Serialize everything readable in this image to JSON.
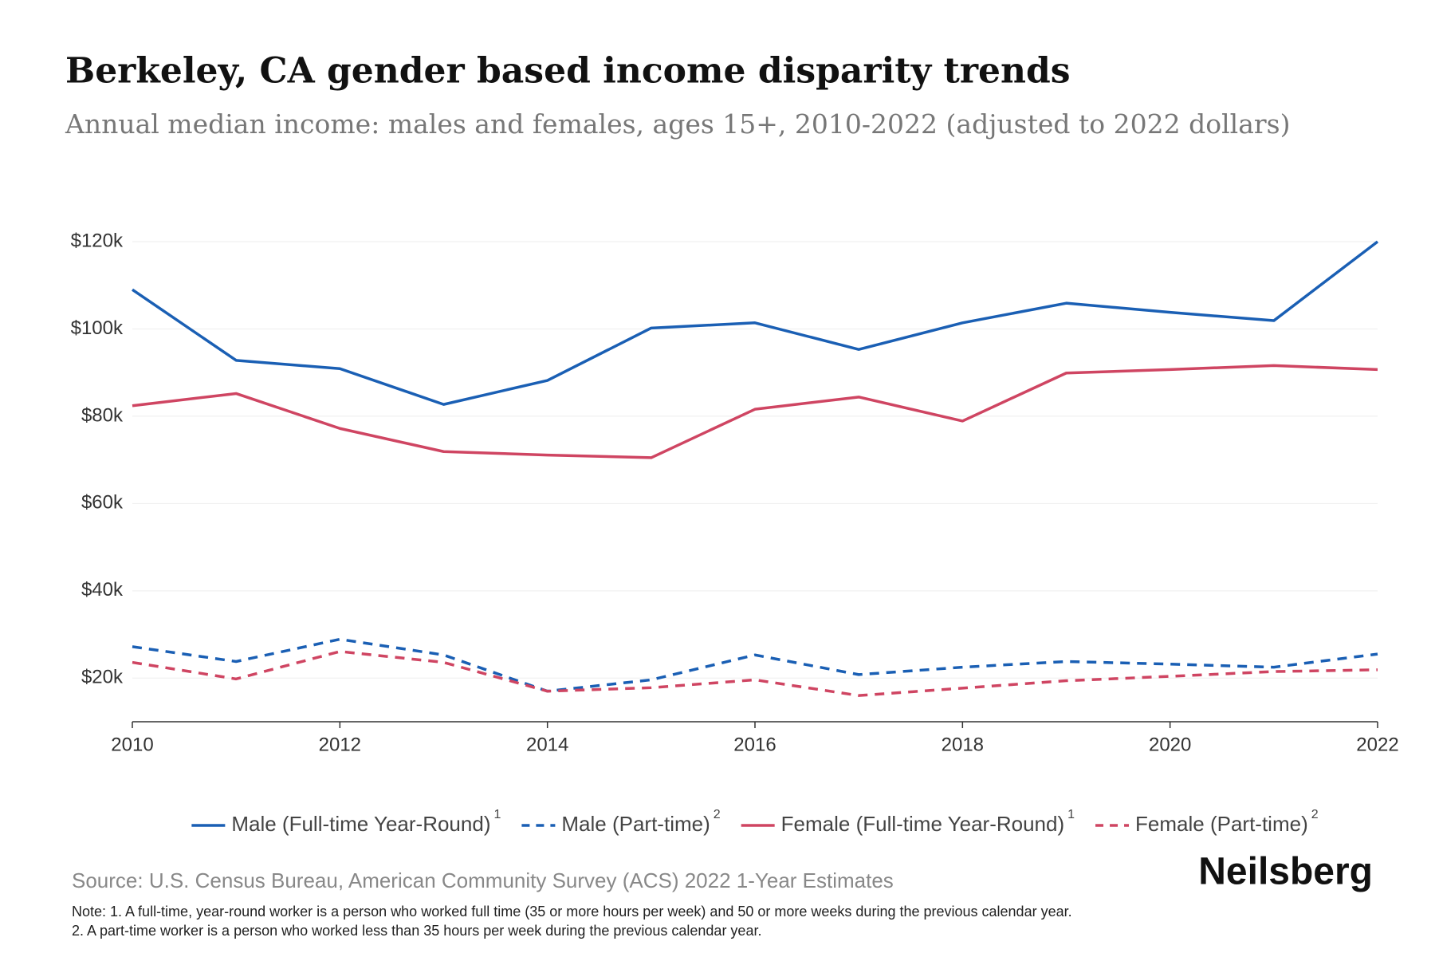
{
  "chart_data": {
    "type": "line",
    "title": "Berkeley, CA gender based income disparity trends",
    "subtitle": "Annual median income: males and females, ages 15+, 2010-2022 (adjusted to 2022 dollars)",
    "x": [
      2010,
      2011,
      2012,
      2013,
      2014,
      2015,
      2016,
      2017,
      2018,
      2019,
      2020,
      2021,
      2022
    ],
    "xlim": [
      2010,
      2022
    ],
    "xticks": [
      2010,
      2012,
      2014,
      2016,
      2018,
      2020,
      2022
    ],
    "ylim": [
      10000,
      120000
    ],
    "yticks": [
      {
        "value": 20000,
        "label": "$20k"
      },
      {
        "value": 40000,
        "label": "$40k"
      },
      {
        "value": 60000,
        "label": "$60k"
      },
      {
        "value": 80000,
        "label": "$80k"
      },
      {
        "value": 100000,
        "label": "$100k"
      },
      {
        "value": 120000,
        "label": "$120k"
      }
    ],
    "grid": true,
    "series": [
      {
        "name": "Male (Full-time Year-Round)",
        "note": "1",
        "color": "#1a5fb4",
        "dashed": false,
        "values": [
          109000,
          92800,
          90900,
          82700,
          88200,
          100200,
          101400,
          95300,
          101400,
          105900,
          103800,
          101900,
          120000
        ]
      },
      {
        "name": "Male (Part-time)",
        "note": "2",
        "color": "#1a5fb4",
        "dashed": true,
        "values": [
          27200,
          23800,
          28900,
          25300,
          17000,
          19600,
          25300,
          20800,
          22500,
          23800,
          23200,
          22500,
          25500
        ]
      },
      {
        "name": "Female (Full-time Year-Round)",
        "note": "1",
        "color": "#cf4562",
        "dashed": false,
        "values": [
          82400,
          85200,
          77200,
          71900,
          71100,
          70500,
          81600,
          84400,
          78900,
          89900,
          90700,
          91600,
          90700
        ]
      },
      {
        "name": "Female (Part-time)",
        "note": "2",
        "color": "#cf4562",
        "dashed": true,
        "values": [
          23600,
          19800,
          26100,
          23600,
          17000,
          17800,
          19600,
          16000,
          17700,
          19400,
          20400,
          21500,
          21900
        ]
      }
    ],
    "source": "Source: U.S. Census Bureau, American Community Survey (ACS) 2022 1-Year Estimates",
    "notes": [
      "Note: 1. A full-time, year-round worker is a person who worked full time (35 or more hours per week) and 50 or more weeks during the previous calendar year.",
      "2. A part-time worker is a person who worked less than 35 hours per week during the previous calendar year."
    ],
    "brand": "Neilsberg"
  }
}
